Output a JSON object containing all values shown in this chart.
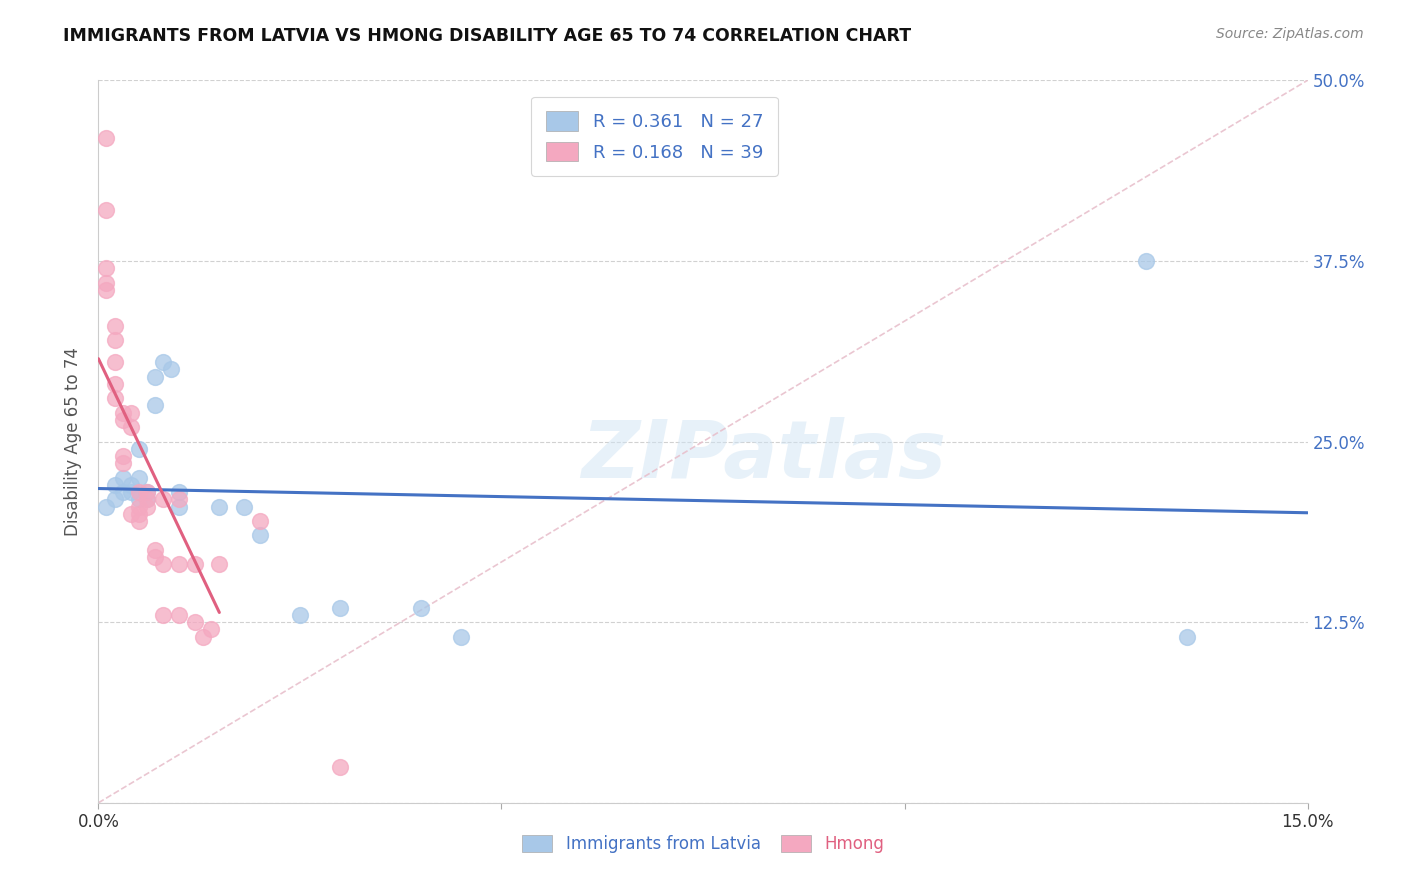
{
  "title": "IMMIGRANTS FROM LATVIA VS HMONG DISABILITY AGE 65 TO 74 CORRELATION CHART",
  "source": "Source: ZipAtlas.com",
  "ylabel": "Disability Age 65 to 74",
  "xlim": [
    0,
    0.15
  ],
  "ylim": [
    0,
    0.5
  ],
  "legend": {
    "latvia_R": "0.361",
    "latvia_N": "27",
    "hmong_R": "0.168",
    "hmong_N": "39"
  },
  "latvia_color": "#a8c8e8",
  "hmong_color": "#f4a8c0",
  "latvia_line_color": "#4472c4",
  "hmong_line_color": "#e06080",
  "diagonal_color": "#e8c0cc",
  "watermark": "ZIPatlas",
  "latvia_x": [
    0.001,
    0.002,
    0.002,
    0.003,
    0.003,
    0.004,
    0.004,
    0.005,
    0.005,
    0.005,
    0.006,
    0.006,
    0.007,
    0.007,
    0.008,
    0.009,
    0.01,
    0.01,
    0.015,
    0.018,
    0.02,
    0.025,
    0.03,
    0.04,
    0.045,
    0.13,
    0.135
  ],
  "latvia_y": [
    0.205,
    0.21,
    0.22,
    0.215,
    0.225,
    0.215,
    0.22,
    0.21,
    0.225,
    0.245,
    0.21,
    0.215,
    0.275,
    0.295,
    0.305,
    0.3,
    0.215,
    0.205,
    0.205,
    0.205,
    0.185,
    0.13,
    0.135,
    0.135,
    0.115,
    0.375,
    0.115
  ],
  "hmong_x": [
    0.001,
    0.001,
    0.001,
    0.001,
    0.001,
    0.002,
    0.002,
    0.002,
    0.002,
    0.002,
    0.003,
    0.003,
    0.003,
    0.003,
    0.004,
    0.004,
    0.004,
    0.005,
    0.005,
    0.005,
    0.005,
    0.006,
    0.006,
    0.006,
    0.007,
    0.007,
    0.008,
    0.008,
    0.008,
    0.01,
    0.01,
    0.01,
    0.012,
    0.012,
    0.013,
    0.014,
    0.015,
    0.02,
    0.03
  ],
  "hmong_y": [
    0.46,
    0.41,
    0.37,
    0.36,
    0.355,
    0.33,
    0.32,
    0.305,
    0.29,
    0.28,
    0.27,
    0.265,
    0.24,
    0.235,
    0.27,
    0.26,
    0.2,
    0.215,
    0.205,
    0.2,
    0.195,
    0.215,
    0.21,
    0.205,
    0.175,
    0.17,
    0.21,
    0.165,
    0.13,
    0.21,
    0.165,
    0.13,
    0.165,
    0.125,
    0.115,
    0.12,
    0.165,
    0.195,
    0.025
  ]
}
